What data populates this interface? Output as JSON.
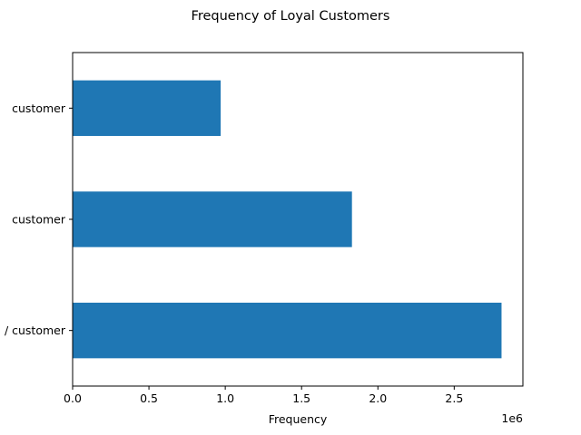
{
  "chart_data": {
    "type": "bar",
    "orientation": "horizontal",
    "title": "Frequency of Loyal Customers",
    "xlabel": "Frequency",
    "ylabel": "",
    "x_offset_label": "1e6",
    "xlim": [
      0,
      2.95
    ],
    "x_ticks": [
      0,
      0.5,
      1.0,
      1.5,
      2.0,
      2.5
    ],
    "x_tick_labels": [
      "0.0",
      "0.5",
      "1.0",
      "1.5",
      "2.0",
      "2.5"
    ],
    "categories": [
      " customer",
      " customer",
      "/ customer"
    ],
    "values": [
      0.97,
      1.83,
      2.81
    ],
    "color": "#1f77b4",
    "grid": false,
    "legend": "none"
  }
}
